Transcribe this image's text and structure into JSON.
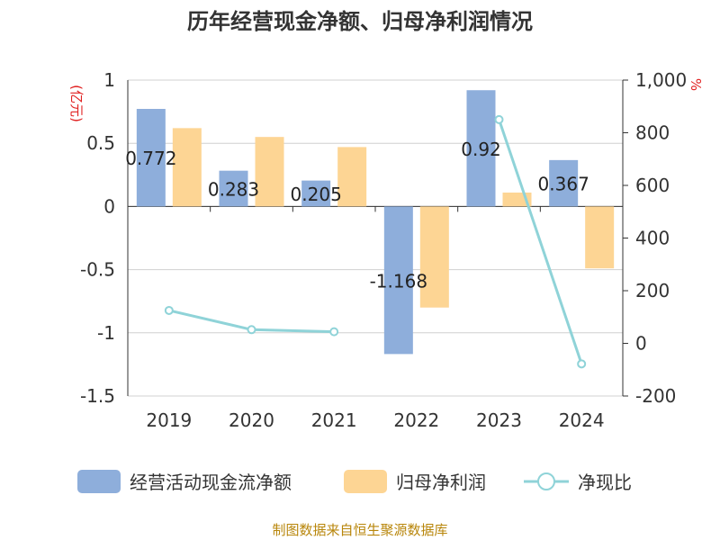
{
  "chart_data": {
    "type": "bar+line",
    "title": "历年经营现金净额、归母净利润情况",
    "categories": [
      "2019",
      "2020",
      "2021",
      "2022",
      "2023",
      "2024"
    ],
    "series": [
      {
        "name": "经营活动现金流净额",
        "type": "bar",
        "axis": "left",
        "color": "#8eaedb",
        "values": [
          0.772,
          0.283,
          0.205,
          -1.168,
          0.92,
          0.367
        ],
        "labels": [
          "0.772",
          "0.283",
          "0.205",
          "-1.168",
          "0.92",
          "0.367"
        ]
      },
      {
        "name": "归母净利润",
        "type": "bar",
        "axis": "left",
        "color": "#fdd594",
        "values": [
          0.62,
          0.55,
          0.47,
          -0.8,
          0.11,
          -0.49
        ]
      },
      {
        "name": "净现比",
        "type": "line",
        "axis": "right",
        "color": "#8fd3d8",
        "values": [
          125,
          52,
          44,
          null,
          850,
          -78
        ]
      }
    ],
    "y_left": {
      "label": "(亿元)",
      "min": -1.5,
      "max": 1,
      "ticks": [
        "1",
        "0.5",
        "0",
        "-0.5",
        "-1",
        "-1.5"
      ]
    },
    "y_right": {
      "label": "%",
      "min": -200,
      "max": 1000,
      "ticks": [
        "1,000",
        "800",
        "600",
        "400",
        "200",
        "0",
        "-200"
      ]
    },
    "legend_position": "bottom"
  },
  "source_note": "制图数据来自恒生聚源数据库"
}
